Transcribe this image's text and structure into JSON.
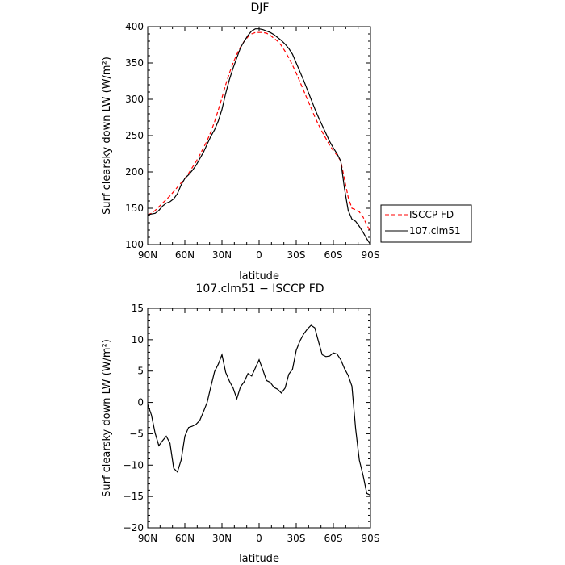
{
  "chart_data": [
    {
      "type": "line",
      "title": "DJF",
      "xlabel": "latitude",
      "ylabel": "Surf clearsky down LW (W/m²)",
      "x": [
        -90,
        -87,
        -84,
        -81,
        -78,
        -75,
        -72,
        -69,
        -66,
        -63,
        -60,
        -57,
        -54,
        -51,
        -48,
        -45,
        -42,
        -39,
        -36,
        -33,
        -30,
        -27,
        -24,
        -21,
        -18,
        -15,
        -12,
        -9,
        -6,
        -3,
        0,
        3,
        6,
        9,
        12,
        15,
        18,
        21,
        24,
        27,
        30,
        33,
        36,
        39,
        42,
        45,
        48,
        51,
        54,
        57,
        60,
        63,
        66,
        69,
        72,
        75,
        78,
        81,
        84,
        87,
        90
      ],
      "xlim": [
        -90,
        90
      ],
      "ylim": [
        100,
        400
      ],
      "xticks": [
        -90,
        -60,
        -30,
        0,
        30,
        60,
        90
      ],
      "xtick_labels": [
        "90N",
        "60N",
        "30N",
        "0",
        "30S",
        "60S",
        "90S"
      ],
      "yticks": [
        100,
        150,
        200,
        250,
        300,
        350,
        400
      ],
      "series": [
        {
          "name": "ISCCP FD",
          "color": "#ff0000",
          "style": "dashed",
          "values": [
            141,
            143,
            147,
            152,
            157,
            162,
            167,
            173,
            179,
            185,
            191,
            198,
            206,
            214,
            223,
            233,
            243,
            255,
            269,
            285,
            302,
            320,
            336,
            350,
            362,
            372,
            380,
            386,
            390,
            392,
            392,
            392,
            391,
            388,
            384,
            380,
            374,
            366,
            357,
            347,
            336,
            324,
            312,
            300,
            288,
            276,
            265,
            255,
            246,
            237,
            229,
            223,
            215,
            190,
            165,
            150,
            148,
            145,
            138,
            127,
            118
          ]
        },
        {
          "name": "107.clm51",
          "color": "#000000",
          "style": "solid",
          "values": [
            141,
            142,
            143,
            147,
            153,
            157,
            159,
            163,
            170,
            182,
            191,
            196,
            202,
            209,
            218,
            227,
            238,
            249,
            258,
            270,
            286,
            308,
            327,
            343,
            357,
            371,
            380,
            388,
            394,
            397,
            397,
            396,
            394,
            392,
            389,
            385,
            381,
            376,
            370,
            362,
            350,
            338,
            326,
            313,
            300,
            287,
            275,
            264,
            253,
            242,
            233,
            225,
            215,
            177,
            147,
            135,
            132,
            125,
            117,
            108,
            100
          ]
        }
      ],
      "legend": {
        "position": "right"
      }
    },
    {
      "type": "line",
      "title": "107.clm51 − ISCCP FD",
      "xlabel": "latitude",
      "ylabel": "Surf clearsky down LW (W/m²)",
      "x": [
        -90,
        -87,
        -84,
        -81,
        -78,
        -75,
        -72,
        -69,
        -66,
        -63,
        -60,
        -57,
        -54,
        -51,
        -48,
        -45,
        -42,
        -39,
        -36,
        -33,
        -30,
        -27,
        -24,
        -21,
        -18,
        -15,
        -12,
        -9,
        -6,
        -3,
        0,
        3,
        6,
        9,
        12,
        15,
        18,
        21,
        24,
        27,
        30,
        33,
        36,
        39,
        42,
        45,
        48,
        51,
        54,
        57,
        60,
        63,
        66,
        69,
        72,
        75,
        78,
        81,
        84,
        87,
        90
      ],
      "xlim": [
        -90,
        90
      ],
      "ylim": [
        -20,
        15
      ],
      "xticks": [
        -90,
        -60,
        -30,
        0,
        30,
        60,
        90
      ],
      "xtick_labels": [
        "90N",
        "60N",
        "30N",
        "0",
        "30S",
        "60S",
        "90S"
      ],
      "yticks": [
        -20,
        -15,
        -10,
        -5,
        0,
        5,
        10,
        15
      ],
      "series": [
        {
          "name": "107.clm51",
          "color": "#000000",
          "style": "solid",
          "values": [
            -0.3,
            -2.0,
            -4.9,
            -6.9,
            -6.1,
            -5.4,
            -6.5,
            -10.5,
            -11.1,
            -9.2,
            -5.4,
            -4.0,
            -3.8,
            -3.5,
            -2.9,
            -1.5,
            0.0,
            2.5,
            4.9,
            6.1,
            7.6,
            4.8,
            3.4,
            2.3,
            0.6,
            2.5,
            3.3,
            4.6,
            4.2,
            5.5,
            6.8,
            5.2,
            3.5,
            3.2,
            2.4,
            2.1,
            1.5,
            2.3,
            4.5,
            5.3,
            8.3,
            9.8,
            10.9,
            11.7,
            12.3,
            11.9,
            9.7,
            7.6,
            7.3,
            7.4,
            7.9,
            7.7,
            6.8,
            5.4,
            4.3,
            2.6,
            -4.2,
            -9.2,
            -11.6,
            -14.5,
            -14.8
          ]
        }
      ]
    }
  ]
}
